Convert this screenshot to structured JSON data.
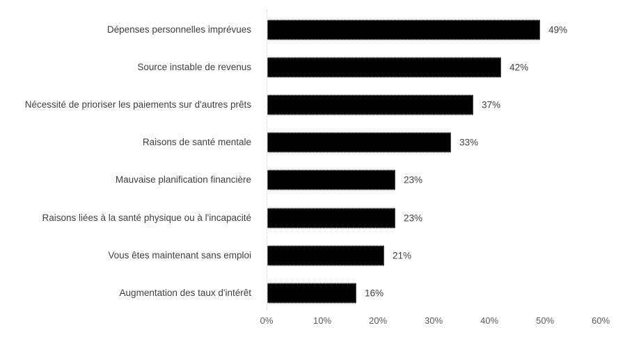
{
  "chart_data": {
    "type": "bar",
    "orientation": "horizontal",
    "title": "",
    "xlabel": "",
    "ylabel": "",
    "categories": [
      "Dépenses personnelles imprévues",
      "Source instable de revenus",
      "Nécessité de prioriser les paiements sur d'autres prêts",
      "Raisons de santé mentale",
      "Mauvaise planification financière",
      "Raisons liées à la santé physique ou à l'incapacité",
      "Vous êtes maintenant sans emploi",
      "Augmentation des taux d'intérêt"
    ],
    "values": [
      49,
      42,
      37,
      33,
      23,
      23,
      21,
      16
    ],
    "value_labels": [
      "49%",
      "42%",
      "37%",
      "33%",
      "23%",
      "23%",
      "21%",
      "16%"
    ],
    "xlim": [
      0,
      60
    ],
    "x_tick_values": [
      0,
      10,
      20,
      30,
      40,
      50,
      60
    ],
    "x_tick_labels": [
      "0%",
      "10%",
      "20%",
      "30%",
      "40%",
      "50%",
      "60%"
    ],
    "grid": "off",
    "legend": "none",
    "colors": {
      "bar": "#000000",
      "category_label": "#3f3f3f",
      "value_label": "#404040",
      "axis_tick_label": "#595959",
      "axis_line": "#c9c9c9",
      "background": "#ffffff"
    }
  }
}
